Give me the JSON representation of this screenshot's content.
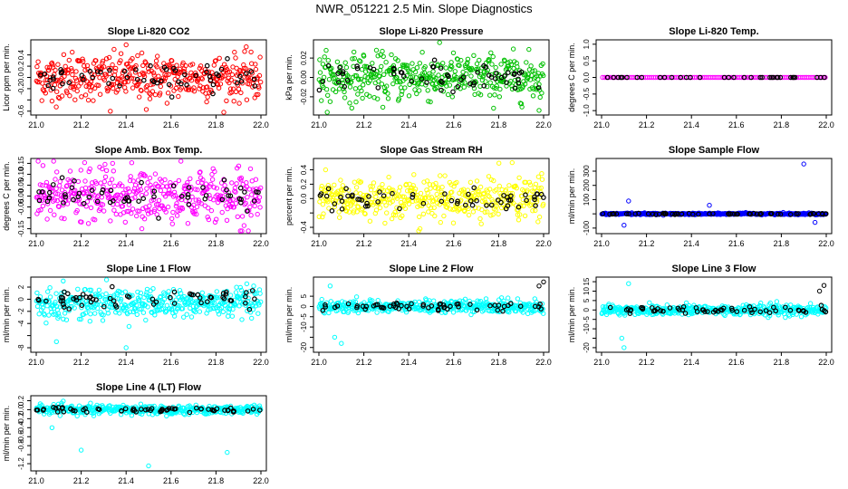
{
  "page_title": "NWR_051221  2.5 Min. Slope Diagnostics",
  "chart_data": [
    {
      "type": "scatter",
      "title": "Slope Li-820 CO2",
      "ylabel": "Licor ppm per min.",
      "xlim": [
        21.0,
        22.0
      ],
      "ylim": [
        -0.62,
        0.62
      ],
      "xticks": [
        "21.0",
        "21.2",
        "21.4",
        "21.6",
        "21.8",
        "22.0"
      ],
      "yticks": [
        -0.6,
        -0.4,
        -0.2,
        0.0,
        0.2,
        0.4
      ],
      "ytick_labels": [
        "-0.6",
        "-0.2",
        "0.0",
        "0.2",
        "0.4"
      ],
      "color": "#ff0000",
      "spread": 0.2,
      "extremes": [
        [
          21.4,
          0.58
        ],
        [
          21.16,
          0.45
        ],
        [
          21.07,
          -0.42
        ],
        [
          21.33,
          -0.6
        ],
        [
          21.49,
          -0.57
        ]
      ]
    },
    {
      "type": "scatter",
      "title": "Slope Li-820 Pressure",
      "ylabel": "kPa per min.",
      "xlim": [
        21.0,
        22.0
      ],
      "ylim": [
        -0.036,
        0.036
      ],
      "xticks": [
        "21.0",
        "21.2",
        "21.4",
        "21.6",
        "21.8",
        "22.0"
      ],
      "yticks": [
        -0.02,
        0.0,
        0.02
      ],
      "ytick_labels": [
        "-0.02",
        "0.00",
        "0.02"
      ],
      "color": "#00c000",
      "spread": 0.012,
      "extremes": [
        [
          21.46,
          0.026
        ],
        [
          21.2,
          0.022
        ],
        [
          21.98,
          -0.034
        ],
        [
          21.05,
          -0.025
        ]
      ]
    },
    {
      "type": "scatter",
      "title": "Slope Li-820 Temp.",
      "ylabel": "degrees C per min.",
      "xlim": [
        21.0,
        22.0
      ],
      "ylim": [
        -1.05,
        1.05
      ],
      "xticks": [
        "21.0",
        "21.2",
        "21.4",
        "21.6",
        "21.8",
        "22.0"
      ],
      "yticks": [
        -1.0,
        -0.5,
        0.0,
        0.5,
        1.0
      ],
      "ytick_labels": [
        "-1.0",
        "-0.5",
        "0.0",
        "0.5",
        "1.0"
      ],
      "color": "#ff00ff",
      "spread": 0.0,
      "extremes": []
    },
    {
      "type": "scatter",
      "title": "Slope Amb. Box Temp.",
      "ylabel": "degrees C per min.",
      "xlim": [
        21.0,
        22.0
      ],
      "ylim": [
        -0.16,
        0.16
      ],
      "xticks": [
        "21.0",
        "21.2",
        "21.4",
        "21.6",
        "21.8",
        "22.0"
      ],
      "yticks": [
        -0.15,
        -0.1,
        -0.05,
        0.0,
        0.05,
        0.1,
        0.15
      ],
      "ytick_labels": [
        "-0.15",
        "-0.05",
        "0.00",
        "0.05",
        "0.10",
        "0.15"
      ],
      "color": "#ff00ff",
      "spread": 0.06,
      "extremes": [
        [
          21.34,
          0.15
        ],
        [
          21.47,
          -0.15
        ],
        [
          21.03,
          0.14
        ]
      ]
    },
    {
      "type": "scatter",
      "title": "Slope Gas Stream RH",
      "ylabel": "percent per min.",
      "xlim": [
        21.0,
        22.0
      ],
      "ylim": [
        -0.45,
        0.52
      ],
      "xticks": [
        "21.0",
        "21.2",
        "21.4",
        "21.6",
        "21.8",
        "22.0"
      ],
      "yticks": [
        -0.4,
        -0.2,
        0.0,
        0.2,
        0.4
      ],
      "ytick_labels": [
        "-0.4",
        "0.0",
        "0.2",
        "0.4"
      ],
      "color": "#ffff00",
      "spread": 0.14,
      "extremes": [
        [
          21.86,
          0.5
        ],
        [
          21.45,
          -0.42
        ],
        [
          21.03,
          0.4
        ]
      ]
    },
    {
      "type": "scatter",
      "title": "Slope Sample Flow",
      "ylabel": "ml/min per min.",
      "xlim": [
        21.0,
        22.0
      ],
      "ylim": [
        -120,
        370
      ],
      "xticks": [
        "21.0",
        "21.2",
        "21.4",
        "21.6",
        "21.8",
        "22.0"
      ],
      "yticks": [
        -100,
        0,
        100,
        200,
        300
      ],
      "ytick_labels": [
        "-100",
        "100",
        "200",
        "300"
      ],
      "color": "#0000ff",
      "spread": 3,
      "extremes": [
        [
          21.9,
          350
        ],
        [
          21.1,
          -80
        ],
        [
          21.12,
          90
        ],
        [
          21.48,
          60
        ],
        [
          21.95,
          -60
        ]
      ]
    },
    {
      "type": "scatter",
      "title": "Slope Line 1 Flow",
      "ylabel": "ml/min per min.",
      "xlim": [
        21.0,
        22.0
      ],
      "ylim": [
        -8.3,
        3.2
      ],
      "xticks": [
        "21.0",
        "21.2",
        "21.4",
        "21.6",
        "21.8",
        "22.0"
      ],
      "yticks": [
        -8,
        -6,
        -4,
        -2,
        0,
        2
      ],
      "ytick_labels": [
        "-8",
        "-4",
        "-2",
        "0",
        "2"
      ],
      "color": "#00ffff",
      "spread": 1.2,
      "extremes": [
        [
          21.12,
          3.0
        ],
        [
          21.09,
          -7.0
        ],
        [
          21.4,
          -8.0
        ]
      ]
    },
    {
      "type": "scatter",
      "title": "Slope Line 2 Flow",
      "ylabel": "ml/min per min.",
      "xlim": [
        21.0,
        22.0
      ],
      "ylim": [
        -21,
        13
      ],
      "xticks": [
        "21.0",
        "21.2",
        "21.4",
        "21.6",
        "21.8",
        "22.0"
      ],
      "yticks": [
        -20,
        -15,
        -10,
        -5,
        0,
        5
      ],
      "ytick_labels": [
        "-20",
        "-10",
        "-5",
        "0",
        "5"
      ],
      "color": "#00ffff",
      "spread": 1.5,
      "extremes": [
        [
          21.07,
          -15
        ],
        [
          21.1,
          -18
        ],
        [
          21.05,
          10
        ],
        [
          22.0,
          12
        ],
        [
          21.98,
          10
        ]
      ]
    },
    {
      "type": "scatter",
      "title": "Slope Line 3 Flow",
      "ylabel": "ml/min per min.",
      "xlim": [
        21.0,
        22.0
      ],
      "ylim": [
        -21,
        16
      ],
      "xticks": [
        "21.0",
        "21.2",
        "21.4",
        "21.6",
        "21.8",
        "22.0"
      ],
      "yticks": [
        -20,
        -15,
        -10,
        -5,
        0,
        5,
        10,
        15
      ],
      "ytick_labels": [
        "-20",
        "-10",
        "-5",
        "0",
        "5",
        "10",
        "15"
      ],
      "color": "#00ffff",
      "spread": 1.5,
      "extremes": [
        [
          21.09,
          -15
        ],
        [
          21.1,
          -20
        ],
        [
          21.12,
          14
        ],
        [
          21.99,
          13
        ],
        [
          21.97,
          10
        ]
      ]
    },
    {
      "type": "scatter",
      "title": "Slope Line 4 (LT) Flow",
      "ylabel": "ml/min per min.",
      "xlim": [
        21.0,
        22.0
      ],
      "ylim": [
        -1.3,
        0.25
      ],
      "xticks": [
        "21.0",
        "21.2",
        "21.4",
        "21.6",
        "21.8",
        "22.0"
      ],
      "yticks": [
        -1.2,
        -1.0,
        -0.8,
        -0.6,
        -0.4,
        -0.2,
        0.0,
        0.2
      ],
      "ytick_labels": [
        "-1.2",
        "-0.8",
        "-0.6",
        "-0.4",
        "-0.2",
        "0.0",
        "0.2"
      ],
      "color": "#00ffff",
      "spread": 0.05,
      "extremes": [
        [
          21.5,
          -1.25
        ],
        [
          21.85,
          -0.95
        ],
        [
          21.2,
          -0.9
        ],
        [
          21.07,
          -0.4
        ]
      ]
    }
  ]
}
